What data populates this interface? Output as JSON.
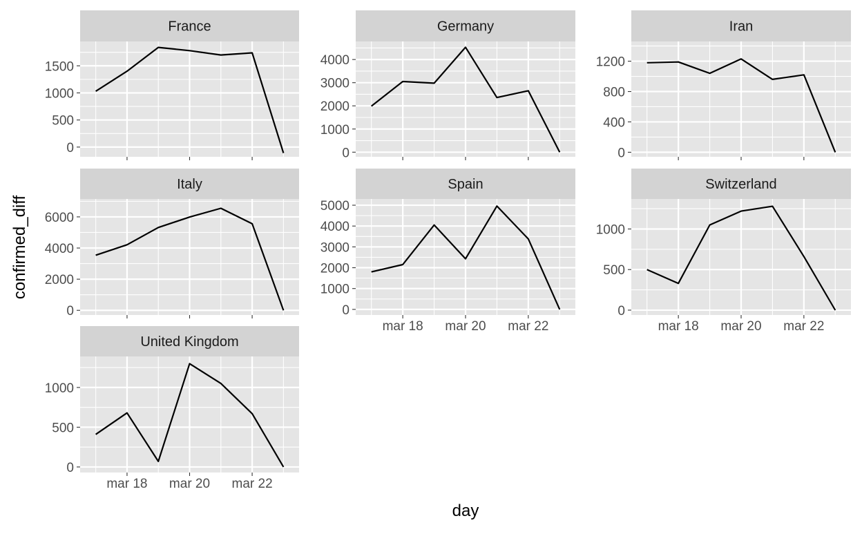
{
  "colors": {
    "panel_background": "#e5e5e5",
    "strip_background": "#d3d3d3",
    "grid_line": "#ffffff",
    "data_line": "#000000",
    "tick_label": "#4d4d4d"
  },
  "chart_data": {
    "type": "line",
    "layout": "facet_wrap 3 columns, 3 rows, free y scales, shared x axis",
    "xlabel": "day",
    "ylabel": "confirmed_diff",
    "x": [
      "2020-03-17",
      "2020-03-18",
      "2020-03-19",
      "2020-03-20",
      "2020-03-21",
      "2020-03-22",
      "2020-03-23"
    ],
    "x_tick_labels": [
      "mar 18",
      "mar 20",
      "mar 22"
    ],
    "grid": true,
    "panels": [
      {
        "name": "France",
        "values": [
          1030,
          1400,
          1840,
          1780,
          1700,
          1740,
          -110
        ],
        "ylim": [
          -180,
          1950
        ],
        "yticks": [
          0,
          500,
          1000,
          1500
        ]
      },
      {
        "name": "Germany",
        "values": [
          1990,
          3050,
          2980,
          4530,
          2360,
          2650,
          0
        ],
        "ylim": [
          -200,
          4780
        ],
        "yticks": [
          0,
          1000,
          2000,
          3000,
          4000
        ]
      },
      {
        "name": "Iran",
        "values": [
          1180,
          1190,
          1040,
          1230,
          960,
          1020,
          0
        ],
        "ylim": [
          -60,
          1460
        ],
        "yticks": [
          0,
          400,
          800,
          1200
        ]
      },
      {
        "name": "Italy",
        "values": [
          3540,
          4210,
          5320,
          5990,
          6550,
          5560,
          0
        ],
        "ylim": [
          -300,
          7150
        ],
        "yticks": [
          0,
          2000,
          4000,
          6000
        ]
      },
      {
        "name": "Spain",
        "values": [
          1800,
          2150,
          4050,
          2430,
          4960,
          3380,
          0
        ],
        "ylim": [
          -270,
          5300
        ],
        "yticks": [
          0,
          1000,
          2000,
          3000,
          4000,
          5000
        ]
      },
      {
        "name": "Switzerland",
        "values": [
          500,
          330,
          1050,
          1220,
          1280,
          660,
          0
        ],
        "ylim": [
          -60,
          1370
        ],
        "yticks": [
          0,
          500,
          1000
        ]
      },
      {
        "name": "United Kingdom",
        "values": [
          410,
          680,
          70,
          1300,
          1050,
          670,
          0
        ],
        "ylim": [
          -70,
          1390
        ],
        "yticks": [
          0,
          500,
          1000
        ]
      }
    ]
  }
}
